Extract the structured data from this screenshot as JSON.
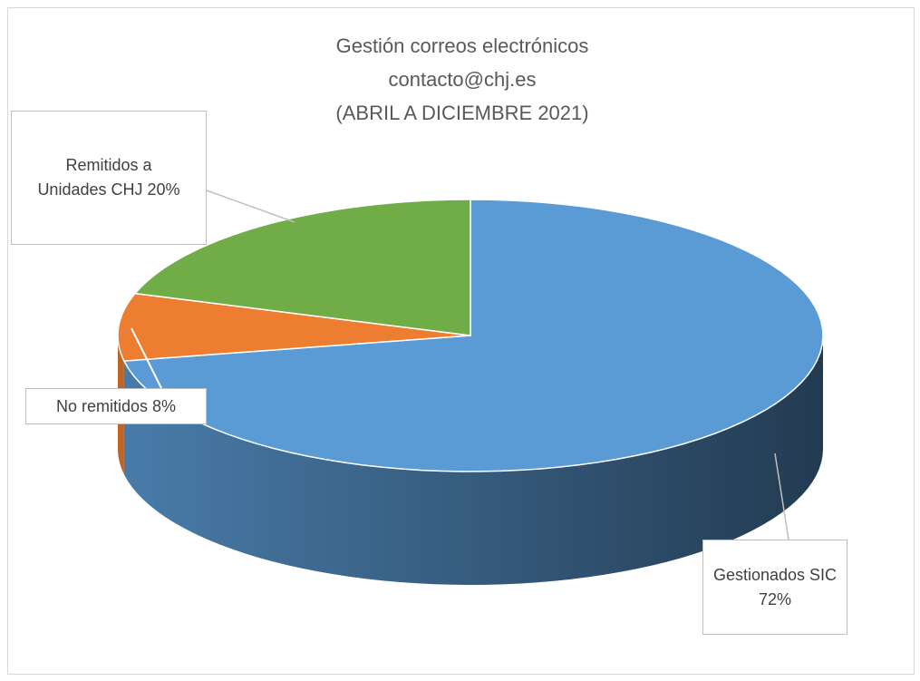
{
  "chart_data": {
    "type": "pie3d",
    "title": [
      "Gestión correos electrónicos",
      "contacto@chj.es",
      "(ABRIL A DICIEMBRE 2021)"
    ],
    "categories": [
      "Gestionados SIC",
      "No remitidos",
      "Remitidos a Unidades CHJ"
    ],
    "values": [
      72,
      8,
      20
    ],
    "value_labels": [
      "72%",
      "8%",
      "20%"
    ],
    "colors": [
      "#5b9bd5",
      "#ed7d31",
      "#70ad47"
    ]
  }
}
